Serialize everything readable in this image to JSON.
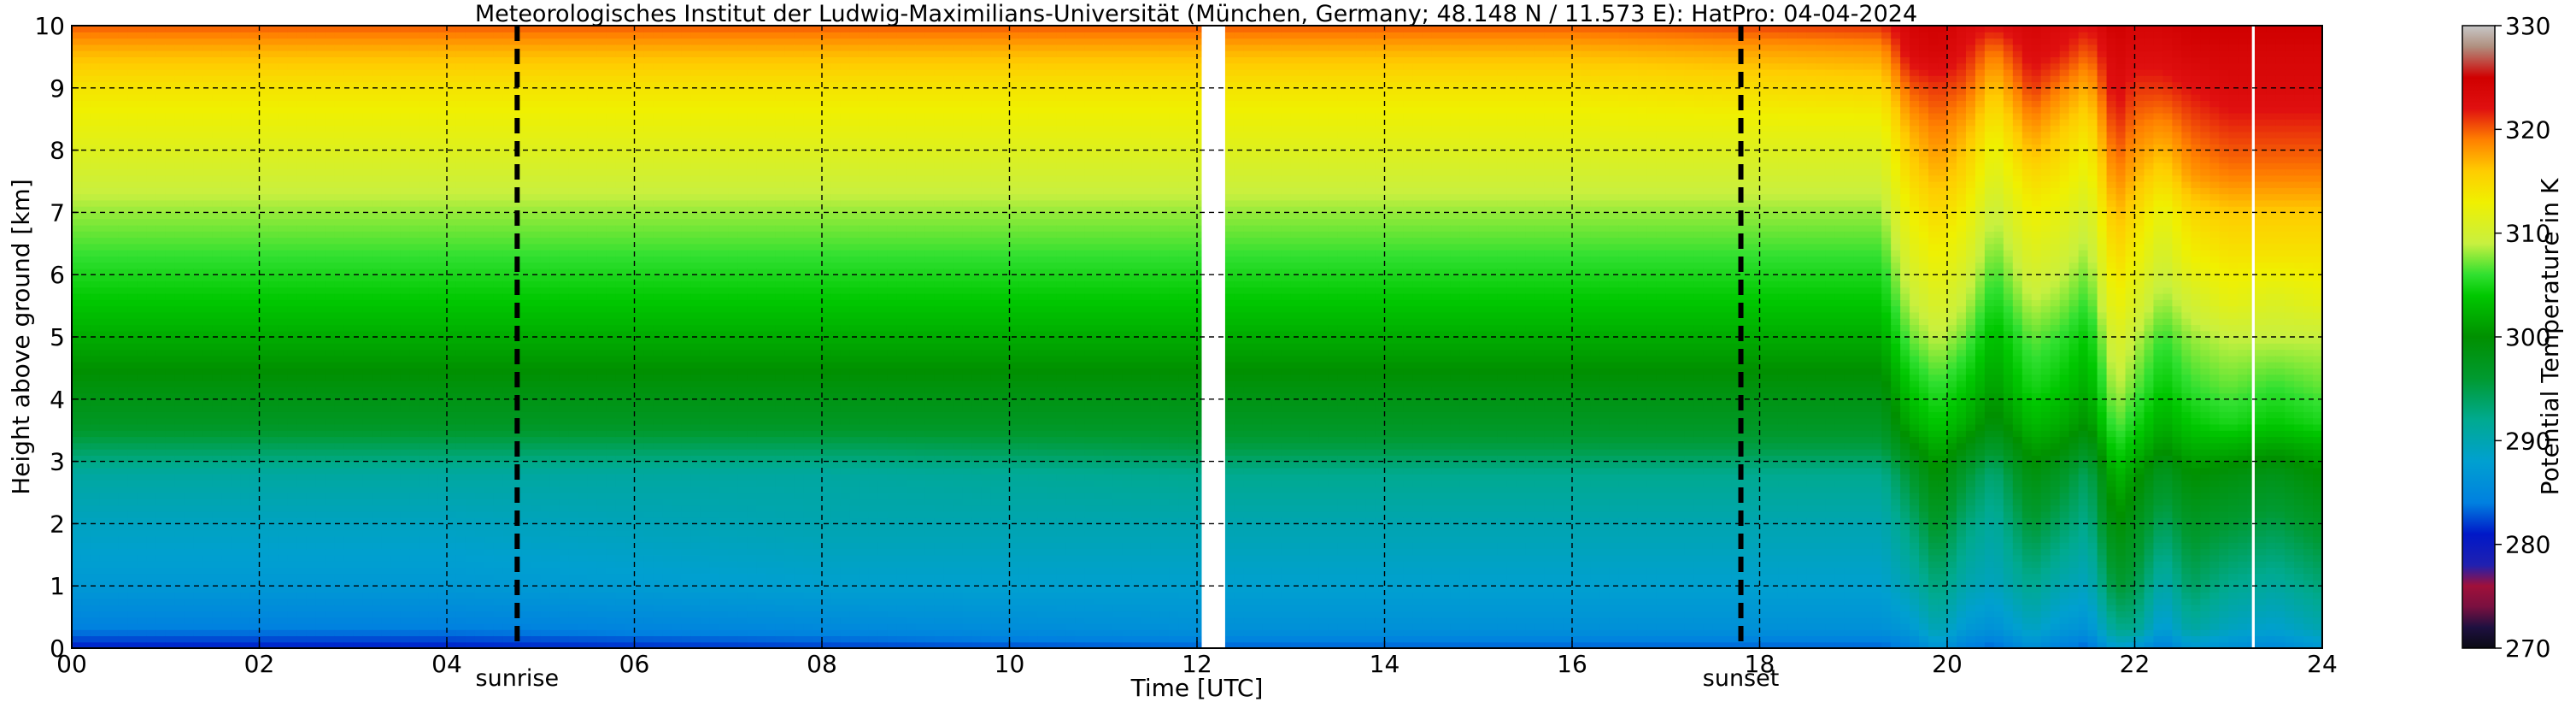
{
  "chart_data": {
    "type": "heatmap",
    "title": "Meteorologisches Institut der Ludwig-Maximilians-Universität (München, Germany; 48.148 N / 11.573 E):    HatPro: 04-04-2024",
    "xlabel": "Time [UTC]",
    "ylabel": "Height above ground [km]",
    "xlim": [
      0,
      24
    ],
    "ylim": [
      0,
      10
    ],
    "x_ticks": [
      {
        "value": 0,
        "label": "00"
      },
      {
        "value": 2,
        "label": "02"
      },
      {
        "value": 4,
        "label": "04"
      },
      {
        "value": 6,
        "label": "06"
      },
      {
        "value": 8,
        "label": "08"
      },
      {
        "value": 10,
        "label": "10"
      },
      {
        "value": 12,
        "label": "12"
      },
      {
        "value": 14,
        "label": "14"
      },
      {
        "value": 16,
        "label": "16"
      },
      {
        "value": 18,
        "label": "18"
      },
      {
        "value": 20,
        "label": "20"
      },
      {
        "value": 22,
        "label": "22"
      },
      {
        "value": 24,
        "label": "24"
      }
    ],
    "y_ticks": [
      {
        "value": 0,
        "label": "0"
      },
      {
        "value": 1,
        "label": "1"
      },
      {
        "value": 2,
        "label": "2"
      },
      {
        "value": 3,
        "label": "3"
      },
      {
        "value": 4,
        "label": "4"
      },
      {
        "value": 5,
        "label": "5"
      },
      {
        "value": 6,
        "label": "6"
      },
      {
        "value": 7,
        "label": "7"
      },
      {
        "value": 8,
        "label": "8"
      },
      {
        "value": 9,
        "label": "9"
      },
      {
        "value": 10,
        "label": "10"
      }
    ],
    "grid": true,
    "annotations": [
      {
        "label": "sunrise",
        "x": 4.75
      },
      {
        "label": "sunset",
        "x": 17.8
      }
    ],
    "data_gaps": [
      [
        12.05,
        12.3
      ],
      [
        23.25,
        23.28
      ]
    ],
    "colorbar": {
      "label": "Potential Temperature in K",
      "range": [
        270,
        330
      ],
      "ticks": [
        {
          "value": 270,
          "label": "270"
        },
        {
          "value": 280,
          "label": "280"
        },
        {
          "value": 290,
          "label": "290"
        },
        {
          "value": 300,
          "label": "300"
        },
        {
          "value": 310,
          "label": "310"
        },
        {
          "value": 320,
          "label": "320"
        },
        {
          "value": 330,
          "label": "330"
        }
      ],
      "stops": [
        {
          "value": 270,
          "color": "#0a0a14"
        },
        {
          "value": 272,
          "color": "#1e1040"
        },
        {
          "value": 274,
          "color": "#7a1040"
        },
        {
          "value": 276,
          "color": "#a0103a"
        },
        {
          "value": 278,
          "color": "#2020b0"
        },
        {
          "value": 281,
          "color": "#0018c8"
        },
        {
          "value": 284,
          "color": "#0080e0"
        },
        {
          "value": 288,
          "color": "#00a0d0"
        },
        {
          "value": 292,
          "color": "#00aa90"
        },
        {
          "value": 296,
          "color": "#009a30"
        },
        {
          "value": 300,
          "color": "#009000"
        },
        {
          "value": 304,
          "color": "#00c800"
        },
        {
          "value": 306,
          "color": "#30e030"
        },
        {
          "value": 309,
          "color": "#c8f040"
        },
        {
          "value": 313,
          "color": "#f0f000"
        },
        {
          "value": 316,
          "color": "#ffcc00"
        },
        {
          "value": 319,
          "color": "#ff8000"
        },
        {
          "value": 322,
          "color": "#e01010"
        },
        {
          "value": 325,
          "color": "#d00000"
        },
        {
          "value": 328,
          "color": "#b09080"
        },
        {
          "value": 330,
          "color": "#c8c8c8"
        }
      ]
    },
    "profile_heights_km": [
      0.0,
      0.3,
      1.0,
      2.0,
      2.8,
      3.2,
      3.6,
      4.2,
      5.0,
      5.6,
      6.3,
      7.0,
      7.6,
      8.3,
      9.0,
      9.6,
      10.0
    ],
    "profiles": [
      {
        "time": 0.0,
        "values": [
          281,
          284,
          287,
          289,
          291,
          294,
          297,
          299,
          302,
          304,
          306,
          308,
          310,
          312,
          314,
          317,
          320
        ]
      },
      {
        "time": 4.0,
        "values": [
          281,
          284,
          287,
          289,
          291,
          294,
          297,
          299,
          302,
          304,
          306,
          308,
          310,
          312,
          314,
          317,
          320
        ]
      },
      {
        "time": 8.0,
        "values": [
          282,
          285,
          288,
          290,
          291,
          294,
          297,
          299,
          302,
          304,
          306,
          308,
          310,
          312,
          314,
          317,
          320
        ]
      },
      {
        "time": 12.0,
        "values": [
          283,
          286,
          288,
          290,
          292,
          295,
          297,
          299,
          302,
          304,
          306,
          308,
          310,
          312,
          314,
          317,
          320
        ]
      },
      {
        "time": 16.0,
        "values": [
          283,
          286,
          288,
          290,
          292,
          295,
          297,
          299,
          302,
          304,
          306,
          308,
          310,
          312,
          314,
          317,
          320
        ]
      },
      {
        "time": 19.3,
        "values": [
          283,
          286,
          288,
          290,
          292,
          295,
          297,
          299,
          302,
          304,
          306,
          308,
          310,
          312,
          315,
          318,
          321
        ]
      },
      {
        "time": 19.6,
        "values": [
          284,
          287,
          290,
          293,
          296,
          299,
          302,
          304,
          307,
          309,
          311,
          313,
          315,
          317,
          320,
          323,
          324
        ]
      },
      {
        "time": 19.9,
        "values": [
          287,
          290,
          293,
          297,
          300,
          302,
          304,
          306,
          309,
          311,
          313,
          315,
          317,
          319,
          321,
          324,
          325
        ]
      },
      {
        "time": 20.2,
        "values": [
          284,
          287,
          290,
          293,
          296,
          299,
          302,
          304,
          307,
          309,
          311,
          313,
          315,
          317,
          320,
          322,
          323
        ]
      },
      {
        "time": 20.5,
        "values": [
          283,
          286,
          289,
          291,
          293,
          296,
          299,
          301,
          303,
          305,
          307,
          309,
          311,
          313,
          316,
          319,
          322
        ]
      },
      {
        "time": 20.9,
        "values": [
          286,
          289,
          292,
          296,
          299,
          301,
          303,
          305,
          307,
          309,
          311,
          313,
          315,
          318,
          321,
          323,
          324
        ]
      },
      {
        "time": 21.2,
        "values": [
          284,
          287,
          290,
          294,
          297,
          300,
          302,
          304,
          306,
          308,
          310,
          312,
          314,
          316,
          319,
          322,
          323
        ]
      },
      {
        "time": 21.5,
        "values": [
          283,
          286,
          289,
          292,
          294,
          297,
          300,
          302,
          304,
          306,
          308,
          310,
          312,
          314,
          317,
          320,
          322
        ]
      },
      {
        "time": 21.8,
        "values": [
          288,
          292,
          296,
          300,
          303,
          305,
          307,
          309,
          311,
          313,
          315,
          317,
          319,
          321,
          323,
          324,
          325
        ]
      },
      {
        "time": 22.0,
        "values": [
          287,
          292,
          295,
          298,
          301,
          303,
          305,
          307,
          309,
          311,
          313,
          315,
          317,
          319,
          321,
          323,
          324
        ]
      },
      {
        "time": 22.3,
        "values": [
          284,
          287,
          290,
          294,
          297,
          300,
          302,
          304,
          306,
          308,
          310,
          312,
          315,
          318,
          321,
          323,
          324
        ]
      },
      {
        "time": 22.6,
        "values": [
          287,
          291,
          294,
          297,
          300,
          302,
          304,
          306,
          308,
          310,
          313,
          315,
          318,
          320,
          322,
          324,
          325
        ]
      },
      {
        "time": 23.0,
        "values": [
          286,
          289,
          292,
          296,
          299,
          302,
          305,
          307,
          309,
          312,
          314,
          316,
          319,
          321,
          323,
          324,
          325
        ]
      },
      {
        "time": 23.5,
        "values": [
          285,
          288,
          291,
          295,
          298,
          301,
          304,
          306,
          309,
          311,
          314,
          316,
          319,
          321,
          323,
          324,
          325
        ]
      },
      {
        "time": 24.0,
        "values": [
          287,
          290,
          293,
          297,
          300,
          302,
          305,
          307,
          309,
          312,
          314,
          316,
          319,
          321,
          323,
          324,
          325
        ]
      }
    ]
  }
}
